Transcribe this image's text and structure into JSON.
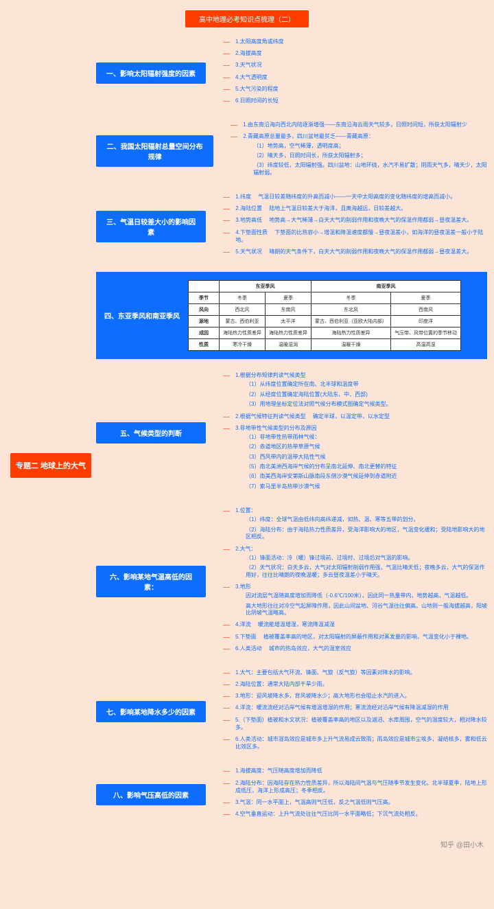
{
  "title": "高中地理必考知识点梳理（二）",
  "root": "专题二  地球上的大气",
  "watermark": "知乎 @田小木",
  "colors": {
    "bg": "#fce5d6",
    "primary": "#ff3d00",
    "secondary": "#0d6efd",
    "line": "#ff7f50"
  },
  "sections": [
    {
      "title": "一、影响太阳辐射强度的因素",
      "items": [
        {
          "t": "1.太阳高度角或纬度"
        },
        {
          "t": "2.海拔高度"
        },
        {
          "t": "3.天气状况"
        },
        {
          "t": "4.大气透明度"
        },
        {
          "t": "5.大气污染的程度"
        },
        {
          "t": "6.日照时间的长短"
        }
      ]
    },
    {
      "title": "二、我国太阳辐射总量空间分布规律",
      "items": [
        {
          "t": "1.由东南沿海向西北内陆逐渐增强——东南沿海云雨天气较多，日照时间短，所获太阳辐射少"
        },
        {
          "t": "2.青藏高原总量最多，四川盆地最贫乏——青藏高原：",
          "subs": [
            "（1）地势高，空气稀薄，透明度高；",
            "（2）晴天多，日照时间长，所获太阳辐射多；",
            "（3）纬度较低，太阳辐射强。四川盆地：山地环绕，水汽不易扩散；阴雨天气多，晴天少，太阳辐射弱。"
          ]
        }
      ]
    },
    {
      "title": "三、气温日较差大小的影响因素",
      "items": [
        {
          "t": "1.纬度",
          "d": "气温日较差随纬度的升高而减小——一天中太阳高度的变化随纬度的增高而减小。"
        },
        {
          "t": "2.海陆位置",
          "d": "陆地上气温日较差大于海洋，且离海越远，日较差越大。"
        },
        {
          "t": "3.地势高低",
          "d": "地势高→大气稀薄→白天大气的削弱作用和夜晚大气的保温作用都弱→昼夜温差大。"
        },
        {
          "t": "4.下垫面性质",
          "d": "下垫面的比热容小→增温和降温速度都慢→昼夜温差小，如海洋的昼夜温差一般小于陆地。"
        },
        {
          "t": "5.天气状况",
          "d": "晴朗的天气条件下，白天大气的削弱作用和夜晚大气的保温作用都弱→昼夜温差大。"
        }
      ]
    },
    {
      "title": "四、东亚季风和南亚季风",
      "type": "table",
      "table": {
        "head1": [
          "",
          "东亚季风",
          "",
          "南亚季风",
          ""
        ],
        "rows": [
          [
            "季节",
            "冬季",
            "夏季",
            "冬季",
            "夏季"
          ],
          [
            "风向",
            "西北风",
            "东南风",
            "东北风",
            "西南风"
          ],
          [
            "源地",
            "蒙古、西伯利亚",
            "太平洋",
            "蒙古、西伯利亚（亚欧大陆内部）",
            "印度洋"
          ],
          [
            "成因",
            "海陆热力性质差异",
            "海陆热力性质差异",
            "海陆热力性质差异",
            "气压带、风带位置的季节移动"
          ],
          [
            "性质",
            "寒冷干燥",
            "温暖湿润",
            "温暖干燥",
            "高温高湿"
          ]
        ]
      }
    },
    {
      "title": "五、气候类型的判断",
      "items": [
        {
          "t": "1.根据分布规律判读气候类型",
          "subs": [
            "（1）从纬度位置确定所在南、北半球和温度带",
            "（2）从经度位置确定海陆位置(大陆东、中、西部)",
            "（3）用地理坐标定位法对照气候分布模式图确定气候类型。"
          ]
        },
        {
          "t": "2.根据气候特征判读气候类型",
          "d": "确定半球，以温定带，以水定型"
        },
        {
          "t": "3.非地带性气候类型的分布及原因",
          "subs": [
            "（1）非地带性热带雨林气候：",
            "（2）赤道地区的热带草原气候",
            "（3）西风带内的温带大陆性气候",
            "（5）南北美洲西海岸气候的分布呈南北延伸、南北更替的特征",
            "（6）南美西海岸安第斯山脉南段东侧沙漠气候延伸到赤道附近",
            "（7）索马里半岛热带沙漠气候"
          ]
        }
      ]
    },
    {
      "title": "六、影响某地气温高低的因素：",
      "items": [
        {
          "t": "1.位置：",
          "subs": [
            "（1）纬度：全球气温由低纬向高纬递减，如热、温、寒等五带的划分。",
            "（2）海陆分布：由于海陆热力性质差异，受海洋影响大的地区，气温变化缓和；受陆地影响大的地区相反。"
          ]
        },
        {
          "t": "2.大气：",
          "subs": [
            "（1）锋面活动：冷（暖）锋过境前、过境时、过境后对气温的影响。",
            "（2）天气状况：白天多云，大气对太阳辐射削弱作用强，气温比晴天低；夜晚多云，大气的保温作用好，往往比晴朗的夜晚温暖；多云昼夜温差小于晴天。"
          ]
        },
        {
          "t": "3.地形",
          "subs": [
            "因对流层气温随高度增加而降低（-0.6℃/100米），因此同一热量带内，地势越高，气温越低。",
            "高大地形往往对冷空气起屏障作用，因此山间盆地、河谷气温往往偏高。山地则一般海拔越高，阳坡比阴坡气温略高。"
          ]
        },
        {
          "t": "4.洋流",
          "d": "暖流能增温增湿，寒流降温减湿"
        },
        {
          "t": "5.下垫面",
          "d": "植被覆盖率高的地区，对太阳辐射的屏蔽作用和对蒸发量的影响，气温变化小于裸地。"
        },
        {
          "t": "6.人类活动",
          "d": "城市的热岛效应，大气的温室效应"
        }
      ]
    },
    {
      "title": "七、影响某地降水多少的因素",
      "items": [
        {
          "t": "1.大气：主要包括大气环流、锋面、气旋（反气旋）等因素对降水的影响。"
        },
        {
          "t": "2.海陆位置：通常大陆内部干旱少雨。"
        },
        {
          "t": "3.地形：迎风坡降水多，背风坡降水少；高大地形也会阻止水汽的进入。"
        },
        {
          "t": "4.洋流：暖流流经对沿岸气候有增温增湿的作用；寒流流经对沿岸气候有降温减湿的作用"
        },
        {
          "t": "5.（下垫面）植被和水文状况：植被覆盖率高的地区以及湖沼、水库周围，空气的湿度较大，相对降水较多。"
        },
        {
          "t": "6.人类活动：城市湿岛效应是城市多上升气流易成云致雨；雨岛效应是城市尘埃多，凝结核多，雾和低云比效区多。"
        }
      ]
    },
    {
      "title": "八、影响气压高低的因素",
      "items": [
        {
          "t": "1.海拔高度：气压随高度增加而降低"
        },
        {
          "t": "2.海陆分布：因海陆存在热力性质差异，所以海陆间气温与气压随季节发生变化。北半球夏季，陆地上形成低压，海洋上形成高压；冬季相反。"
        },
        {
          "t": "3.气温：同一水平面上，气温高则气压低，反之气温低则气压高。"
        },
        {
          "t": "4.空气垂直运动：上升气流处往往气压比同一水平面略低；下沉气流处相反。"
        }
      ]
    }
  ]
}
